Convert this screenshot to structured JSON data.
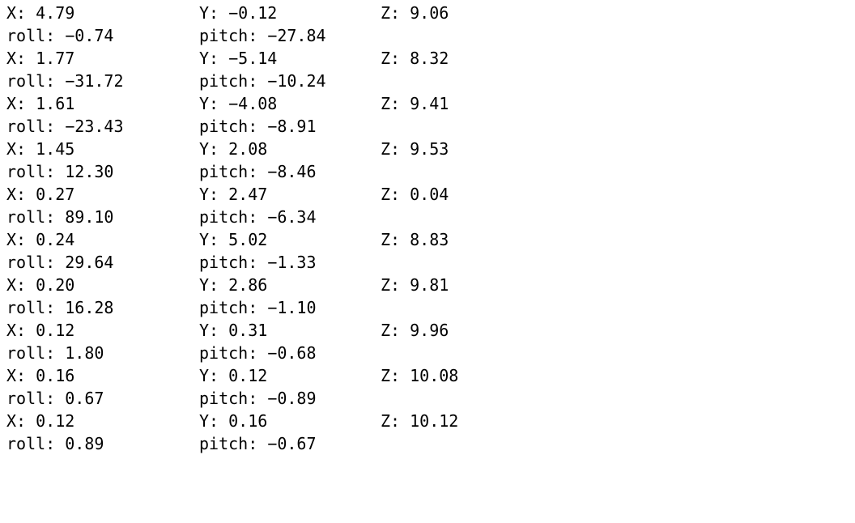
{
  "readings": [
    {
      "x": "X: 4.79",
      "y": "Y: −0.12",
      "z": "Z: 9.06",
      "roll": "roll: −0.74",
      "pitch": "pitch: −27.84"
    },
    {
      "x": "X: 1.77",
      "y": "Y: −5.14",
      "z": "Z: 8.32",
      "roll": "roll: −31.72",
      "pitch": "pitch: −10.24"
    },
    {
      "x": "X: 1.61",
      "y": "Y: −4.08",
      "z": "Z: 9.41",
      "roll": "roll: −23.43",
      "pitch": "pitch: −8.91"
    },
    {
      "x": "X: 1.45",
      "y": "Y: 2.08",
      "z": "Z: 9.53",
      "roll": "roll: 12.30",
      "pitch": "pitch: −8.46"
    },
    {
      "x": "X: 0.27",
      "y": "Y: 2.47",
      "z": "Z: 0.04",
      "roll": "roll: 89.10",
      "pitch": "pitch: −6.34"
    },
    {
      "x": "X: 0.24",
      "y": "Y: 5.02",
      "z": "Z: 8.83",
      "roll": "roll: 29.64",
      "pitch": "pitch: −1.33"
    },
    {
      "x": "X: 0.20",
      "y": "Y: 2.86",
      "z": "Z: 9.81",
      "roll": "roll: 16.28",
      "pitch": "pitch: −1.10"
    },
    {
      "x": "X: 0.12",
      "y": "Y: 0.31",
      "z": "Z: 9.96",
      "roll": "roll: 1.80",
      "pitch": "pitch: −0.68"
    },
    {
      "x": "X: 0.16",
      "y": "Y: 0.12",
      "z": "Z: 10.08",
      "roll": "roll: 0.67",
      "pitch": "pitch: −0.89"
    },
    {
      "x": "X: 0.12",
      "y": "Y: 0.16",
      "z": "Z: 10.12",
      "roll": "roll: 0.89",
      "pitch": "pitch: −0.67"
    }
  ]
}
